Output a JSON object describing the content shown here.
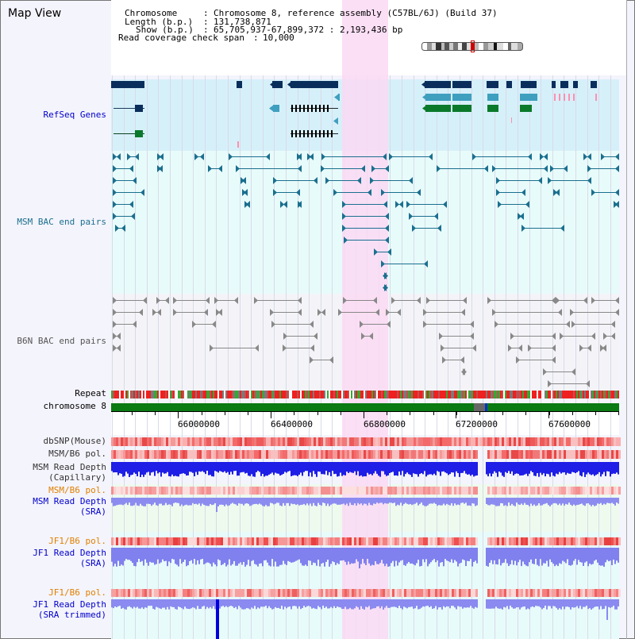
{
  "header": {
    "title": "Map View",
    "chromosome_key": "Chromosome",
    "chromosome_value": "Chromosome 8, reference assembly (C57BL/6J) (Build 37)",
    "length_key": "Length (b.p.)",
    "length_value": "131,738,871",
    "show_key": "Show (b.p.)",
    "show_value": "65,705,937-67,899,372 : 2,193,436 bp",
    "coverage_key": "Read coverage check span",
    "coverage_value": "10,000"
  },
  "tracks": {
    "refseq": "RefSeq Genes",
    "msm_bac": "MSM BAC end pairs",
    "b6n_bac": "B6N BAC end pairs",
    "repeat": "Repeat",
    "chrom": "chromosome 8",
    "dbsnp": "dbSNP(Mouse)",
    "msm_b6_pol": "MSM/B6 pol.",
    "msm_depth_cap_1": "MSM Read Depth",
    "msm_depth_cap_2": "(Capillary)",
    "msm_b6_pol2": "MSM/B6 pol.",
    "msm_depth_sra_1": "MSM Read Depth",
    "msm_depth_sra_2": "(SRA)",
    "jf1_b6_pol": "JF1/B6 pol.",
    "jf1_depth_sra_1": "JF1 Read Depth",
    "jf1_depth_sra_2": "(SRA)",
    "jf1_b6_pol2": "JF1/B6 pol.",
    "jf1_depth_trim_1": "JF1 Read Depth",
    "jf1_depth_trim_2": "(SRA trimmed)"
  },
  "axis": {
    "ticks": [
      "66000000",
      "66400000",
      "66800000",
      "67200000",
      "67600000"
    ]
  },
  "colors": {
    "refseq_bg": "#d6f0fa",
    "msm_bg": "#e8fbfb",
    "b6n_bg": "#f4f4f8",
    "highlight": "#fad9f3",
    "msm_feature": "#1a6f8e",
    "b6n_feature": "#888888",
    "gene_dark": "#0a2e5c",
    "gene_mid": "#3f9fbf",
    "gene_green": "#0a7a2a",
    "chrom_green": "#0a7a12",
    "depth_blue": "#2020e8",
    "depth_light": "#8080ee",
    "pol_label": "#e08000",
    "depth_label": "#0000cc"
  }
}
